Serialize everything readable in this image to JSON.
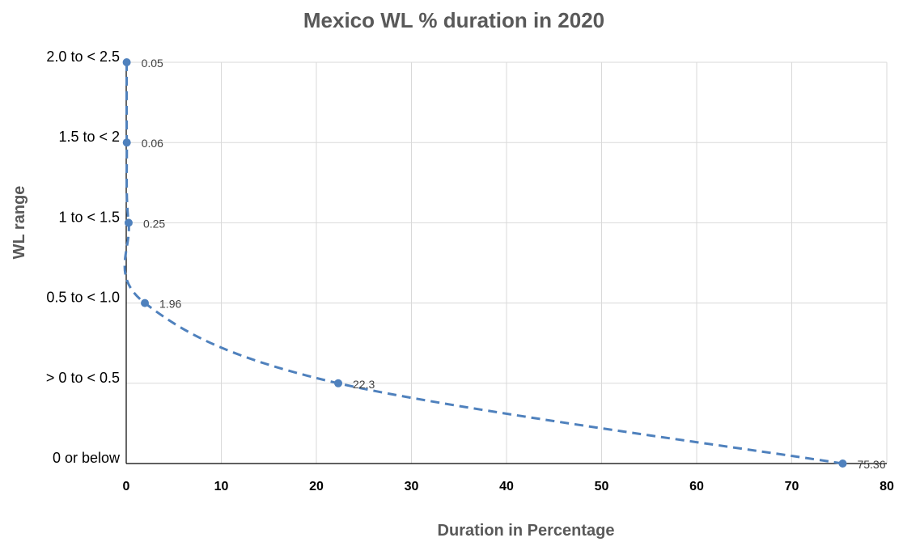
{
  "chart_data": {
    "type": "line",
    "title": "Mexico WL % duration in 2020",
    "xlabel": "Duration in Percentage",
    "ylabel": "WL range",
    "xlim": [
      0,
      80
    ],
    "xticks": [
      "0",
      "10",
      "20",
      "30",
      "40",
      "50",
      "60",
      "70",
      "80"
    ],
    "categories": [
      "0 or below",
      "> 0 to < 0.5",
      "0.5 to < 1.0",
      "1 to < 1.5",
      "1.5 to < 2",
      "2.0 to < 2.5"
    ],
    "series": [
      {
        "values": [
          75.36,
          22.3,
          1.96,
          0.25,
          0.06,
          0.05
        ],
        "labels": [
          "75.36",
          "22.3",
          "1.96",
          "0.25",
          "0.06",
          "0.05"
        ],
        "line_style": "dashed smoothed",
        "color": "#4f81bd"
      }
    ],
    "grid": true,
    "legend": "none"
  }
}
